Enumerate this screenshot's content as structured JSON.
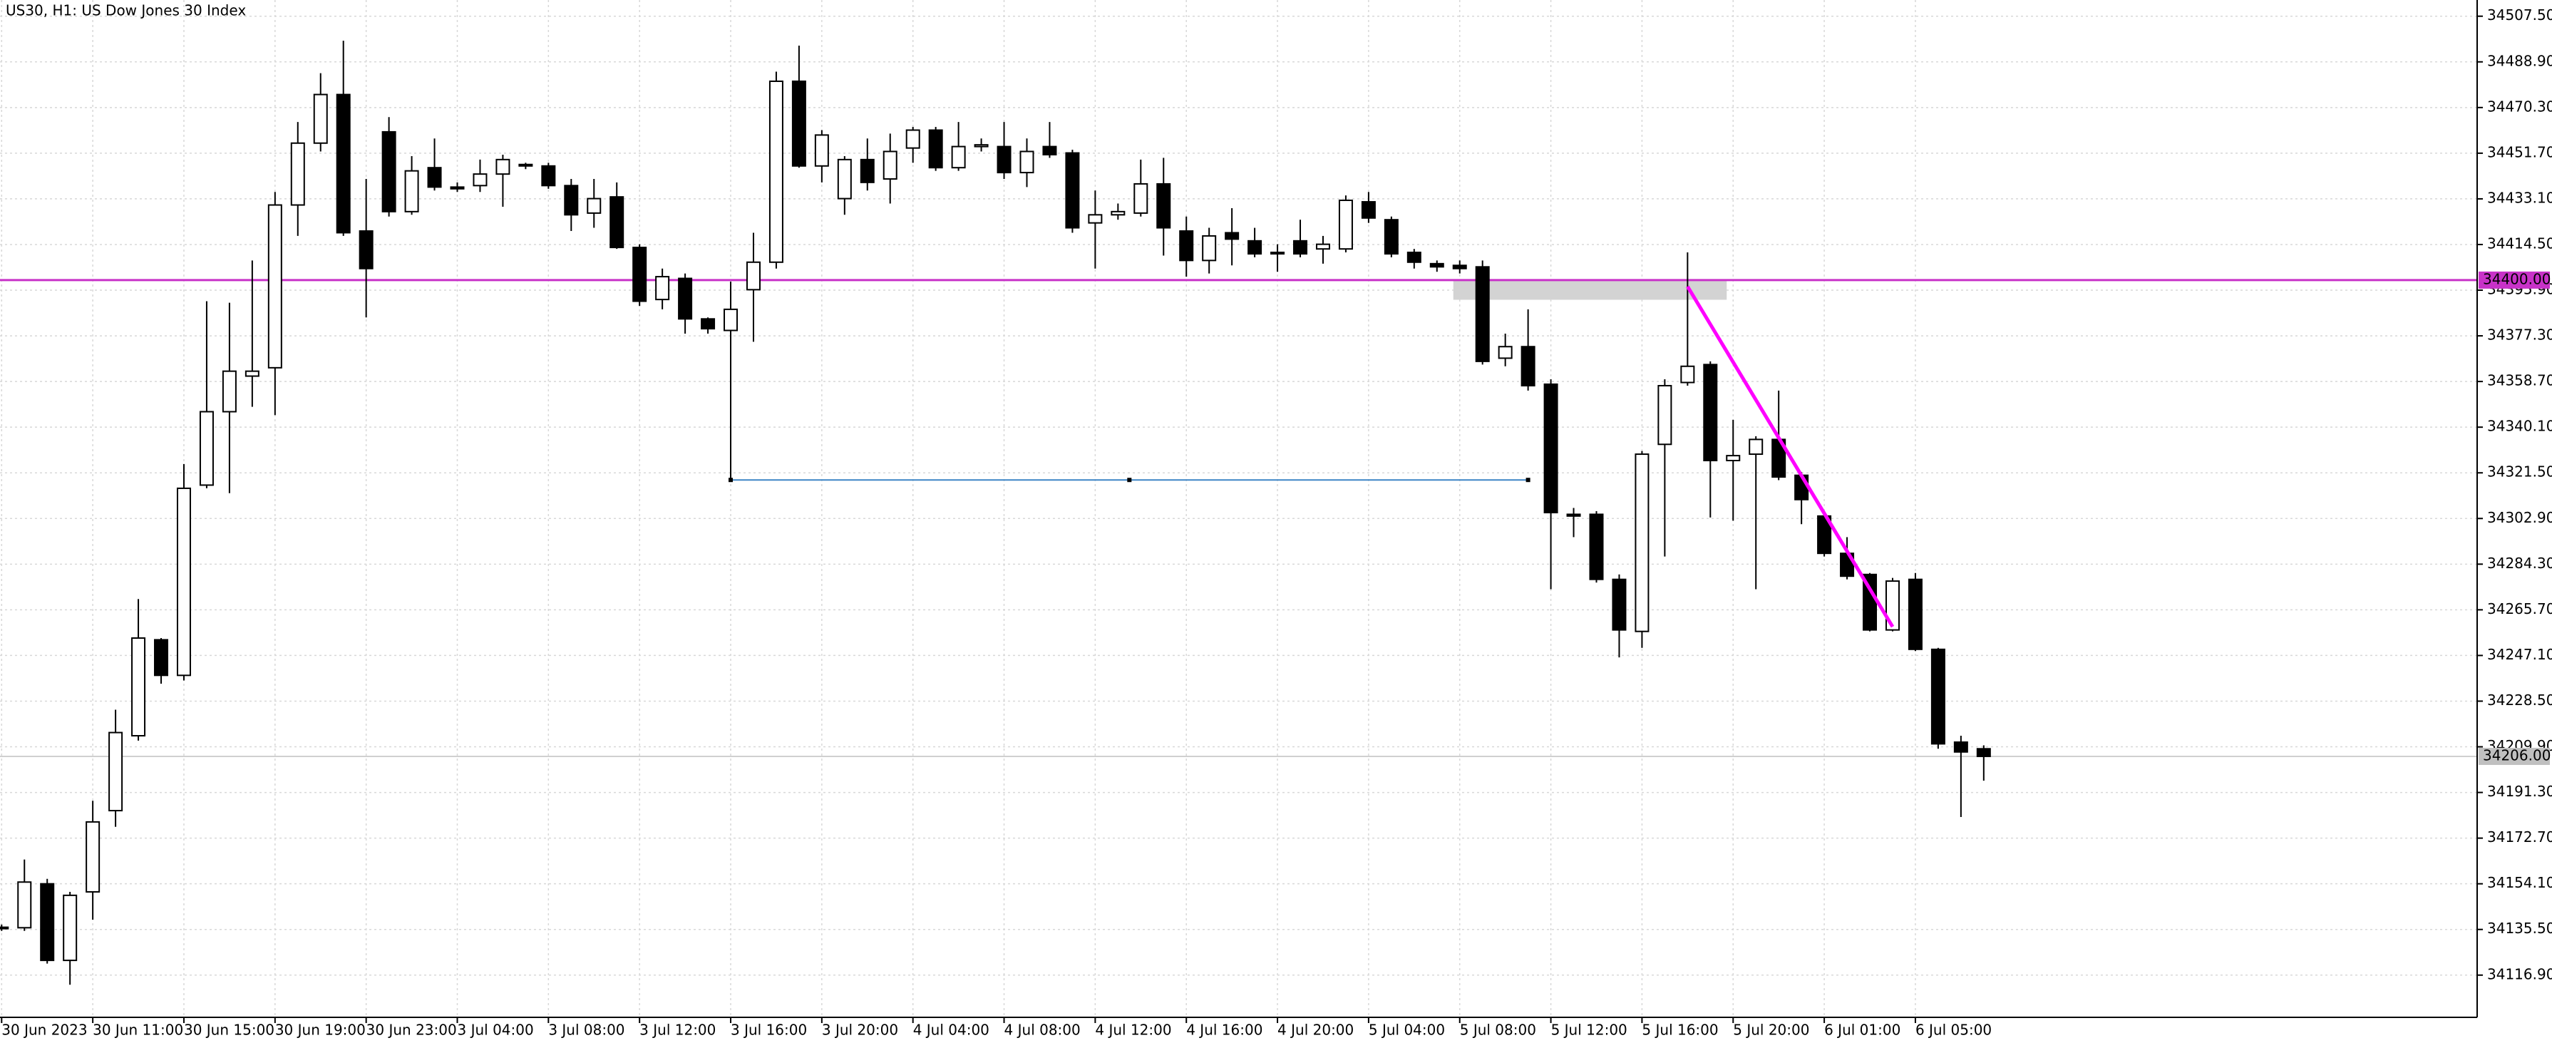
{
  "chart_data": {
    "type": "candlestick",
    "title": "US30, H1:  US Dow Jones 30 Index",
    "categories": [
      "30 Jun 2023",
      null,
      null,
      null,
      "30 Jun 11:00",
      null,
      null,
      null,
      "30 Jun 15:00",
      null,
      null,
      null,
      "30 Jun 19:00",
      null,
      null,
      null,
      "30 Jun 23:00",
      null,
      null,
      null,
      "3 Jul 04:00",
      null,
      null,
      null,
      "3 Jul 08:00",
      null,
      null,
      null,
      "3 Jul 12:00",
      null,
      null,
      null,
      "3 Jul 16:00",
      null,
      null,
      null,
      "3 Jul 20:00",
      null,
      null,
      null,
      "4 Jul 04:00",
      null,
      null,
      null,
      "4 Jul 08:00",
      null,
      null,
      null,
      "4 Jul 12:00",
      null,
      null,
      null,
      "4 Jul 16:00",
      null,
      null,
      null,
      "4 Jul 20:00",
      null,
      null,
      null,
      "5 Jul 04:00",
      null,
      null,
      null,
      "5 Jul 08:00",
      null,
      null,
      null,
      "5 Jul 12:00",
      null,
      null,
      null,
      "5 Jul 16:00",
      null,
      null,
      null,
      "5 Jul 20:00",
      null,
      null,
      null,
      "6 Jul 01:00",
      null,
      null,
      null,
      "6 Jul 05:00",
      null,
      null,
      null
    ],
    "open": [
      34136.2,
      34136.2,
      34154.1,
      34122.9,
      34150.8,
      34183.9,
      34214.4,
      34253.5,
      34239.0,
      34316.5,
      34346.4,
      34360.9,
      34364.3,
      34430.6,
      34455.8,
      34475.6,
      34420.0,
      34460.4,
      34427.9,
      34445.8,
      34437.9,
      34438.5,
      34443.2,
      34447.1,
      34446.5,
      34438.5,
      34427.3,
      34433.9,
      34413.3,
      34392.1,
      34400.7,
      34384.2,
      34379.5,
      34396.1,
      34407.3,
      34481.0,
      34446.5,
      34433.2,
      34449.1,
      34441.2,
      34453.8,
      34461.1,
      34445.8,
      34454.4,
      34454.4,
      34443.8,
      34454.4,
      34451.8,
      34423.3,
      34426.6,
      34427.3,
      34439.2,
      34420.0,
      34408.0,
      34419.3,
      34416.0,
      34411.3,
      34416.0,
      34412.7,
      34412.7,
      34431.9,
      34424.6,
      34411.3,
      34406.7,
      34406.0,
      34405.4,
      34368.2,
      34372.9,
      34357.6,
      34304.6,
      34304.6,
      34278.1,
      34256.9,
      34333.1,
      34358.3,
      34365.6,
      34326.5,
      34329.1,
      34335.1,
      34320.5,
      34303.9,
      34288.7,
      34280.1,
      34257.5,
      34278.1,
      34249.6,
      34211.8,
      34209.1
    ],
    "high": [
      34137.5,
      34164.0,
      34156.1,
      34150.8,
      34187.9,
      34225.0,
      34270.1,
      34254.2,
      34325.1,
      34391.4,
      34390.8,
      34408.0,
      34435.9,
      34464.4,
      34484.3,
      34497.5,
      34441.2,
      34466.4,
      34450.5,
      34457.7,
      34439.8,
      34449.1,
      34451.1,
      34447.8,
      34447.8,
      34441.2,
      34441.2,
      34439.8,
      34414.6,
      34404.7,
      34402.7,
      34384.8,
      34399.4,
      34419.3,
      34484.9,
      34495.5,
      34461.1,
      34450.5,
      34457.7,
      34459.7,
      34462.4,
      34462.4,
      34464.4,
      34457.7,
      34464.4,
      34457.7,
      34464.4,
      34453.1,
      34436.5,
      34431.2,
      34449.1,
      34449.8,
      34425.9,
      34421.3,
      34429.3,
      34421.3,
      34414.6,
      34424.6,
      34418.0,
      34434.5,
      34435.9,
      34425.9,
      34412.7,
      34408.0,
      34408.0,
      34408.0,
      34378.2,
      34388.1,
      34359.6,
      34307.2,
      34305.9,
      34280.1,
      34330.4,
      34359.6,
      34411.3,
      34366.9,
      34343.1,
      34336.4,
      34355.0,
      34321.8,
      34304.6,
      34295.3,
      34280.7,
      34278.7,
      34280.7,
      34250.2,
      34214.4,
      34210.5
    ],
    "low": [
      34134.9,
      34134.9,
      34121.6,
      34113.0,
      34139.5,
      34177.3,
      34212.4,
      34235.6,
      34236.9,
      34315.2,
      34313.2,
      34348.4,
      34345.0,
      34418.0,
      34452.4,
      34418.0,
      34384.8,
      34425.9,
      34426.6,
      34436.5,
      34435.9,
      34435.9,
      34429.9,
      34445.2,
      34437.2,
      34420.0,
      34421.3,
      34412.7,
      34389.5,
      34388.1,
      34378.2,
      34378.2,
      34318.5,
      34374.9,
      34404.7,
      34445.8,
      34439.8,
      34426.6,
      34436.5,
      34431.2,
      34447.8,
      34444.5,
      34444.5,
      34452.4,
      34441.2,
      34437.9,
      34449.8,
      34419.3,
      34404.7,
      34424.6,
      34425.9,
      34410.0,
      34401.4,
      34402.7,
      34406.0,
      34409.3,
      34403.4,
      34409.3,
      34406.7,
      34411.3,
      34423.3,
      34409.3,
      34404.7,
      34403.4,
      34402.7,
      34365.6,
      34364.9,
      34355.0,
      34274.1,
      34295.3,
      34276.8,
      34246.3,
      34250.2,
      34287.4,
      34357.0,
      34303.3,
      34302.0,
      34274.1,
      34318.5,
      34300.6,
      34287.4,
      34278.1,
      34256.9,
      34256.9,
      34248.9,
      34209.1,
      34181.3,
      34196.1
    ],
    "close": [
      34136.4,
      34154.8,
      34122.9,
      34149.4,
      34179.3,
      34215.7,
      34254.2,
      34239.0,
      34315.2,
      34346.4,
      34362.9,
      34362.9,
      34430.6,
      34455.8,
      34475.6,
      34419.3,
      34404.7,
      34427.9,
      34444.5,
      34437.9,
      34437.2,
      34443.2,
      34449.1,
      34446.5,
      34438.5,
      34426.6,
      34433.2,
      34413.3,
      34391.4,
      34401.4,
      34384.2,
      34380.2,
      34388.1,
      34407.3,
      34481.0,
      34446.5,
      34459.1,
      34449.1,
      34439.8,
      34452.4,
      34461.1,
      34445.8,
      34454.4,
      34455.1,
      34443.8,
      34452.4,
      34451.1,
      34421.3,
      34426.6,
      34427.9,
      34439.2,
      34421.3,
      34408.0,
      34418.0,
      34416.7,
      34410.7,
      34410.7,
      34410.7,
      34414.6,
      34432.5,
      34425.3,
      34410.7,
      34407.3,
      34405.4,
      34404.7,
      34366.9,
      34372.9,
      34357.0,
      34305.3,
      34303.9,
      34278.1,
      34257.5,
      34329.1,
      34357.0,
      34364.9,
      34326.5,
      34328.5,
      34335.1,
      34319.8,
      34310.6,
      34288.7,
      34279.4,
      34257.5,
      34277.4,
      34249.6,
      34211.1,
      34207.8,
      34206.0
    ],
    "up_color": "#ffffff",
    "down_color": "#000000",
    "ylim": [
      34099.7,
      34514.1
    ],
    "yticks": [
      {
        "value": 34507.5,
        "label": "34507.50"
      },
      {
        "value": 34488.9,
        "label": "34488.90"
      },
      {
        "value": 34470.3,
        "label": "34470.30"
      },
      {
        "value": 34451.7,
        "label": "34451.70"
      },
      {
        "value": 34433.1,
        "label": "34433.10"
      },
      {
        "value": 34414.5,
        "label": "34414.50"
      },
      {
        "value": 34395.9,
        "label": "34395.90"
      },
      {
        "value": 34377.3,
        "label": "34377.30"
      },
      {
        "value": 34358.7,
        "label": "34358.70"
      },
      {
        "value": 34340.1,
        "label": "34340.10"
      },
      {
        "value": 34321.5,
        "label": "34321.50"
      },
      {
        "value": 34302.9,
        "label": "34302.90"
      },
      {
        "value": 34284.3,
        "label": "34284.30"
      },
      {
        "value": 34265.7,
        "label": "34265.70"
      },
      {
        "value": 34247.1,
        "label": "34247.10"
      },
      {
        "value": 34228.5,
        "label": "34228.50"
      },
      {
        "value": 34209.9,
        "label": "34209.90"
      },
      {
        "value": 34191.3,
        "label": "34191.30"
      },
      {
        "value": 34172.7,
        "label": "34172.70"
      },
      {
        "value": 34154.1,
        "label": "34154.10"
      },
      {
        "value": 34135.5,
        "label": "34135.50"
      },
      {
        "value": 34116.9,
        "label": "34116.90"
      }
    ],
    "grid": true,
    "horizontal_line": {
      "value": 34400,
      "label": "34400.00",
      "color": "#c832c8"
    },
    "current_price": {
      "value": 34206,
      "label": "34206.00",
      "color": "#c0c0c0"
    },
    "zone": {
      "x": [
        64,
        76
      ],
      "values": [
        34392.0,
        34400.0
      ],
      "color": "#d3d3d3"
    },
    "horizontal_segment": {
      "x": [
        32,
        49.5,
        67
      ],
      "value": 34318.6,
      "color": "#3d85c6"
    },
    "trendline": {
      "x": [
        74,
        83
      ],
      "values": [
        34397.4,
        34258.8
      ],
      "color": "#ff00ff"
    }
  }
}
